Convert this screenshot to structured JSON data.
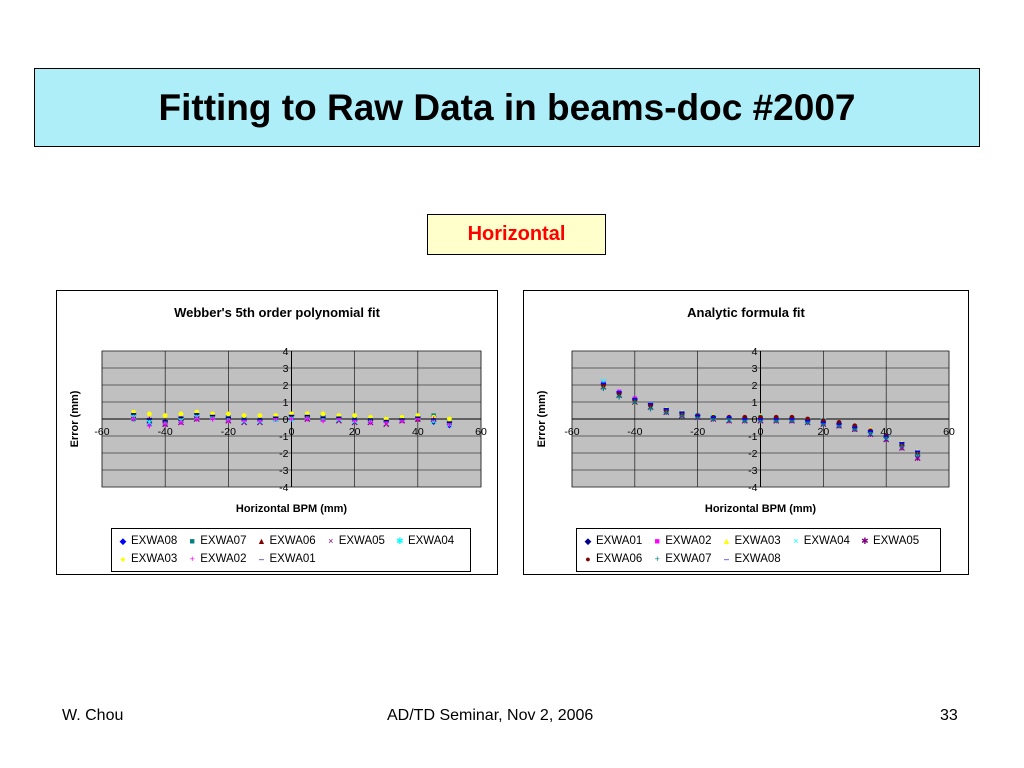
{
  "slide": {
    "title": "Fitting to Raw Data in beams-doc #2007",
    "subtitle": "Horizontal",
    "footer_left": "W. Chou",
    "footer_center": "AD/TD Seminar, Nov 2, 2006",
    "footer_right": "33",
    "title_bg": "#aeeef8",
    "subtitle_bg": "#ffffcc",
    "subtitle_color": "#ff0000"
  },
  "colors": {
    "EXWA01": "#00008b",
    "EXWA02": "#ff00ff",
    "EXWA03": "#ffff00",
    "EXWA04": "#00ffff",
    "EXWA05": "#800080",
    "EXWA06": "#800000",
    "EXWA07": "#008080",
    "EXWA08": "#0000ff"
  },
  "chart_data": [
    {
      "type": "scatter",
      "title": "Webber's 5th order polynomial fit",
      "xlabel": "Horizontal BPM (mm)",
      "ylabel": "Error (mm)",
      "xlim": [
        -60,
        60
      ],
      "ylim": [
        -4,
        4
      ],
      "xticks": [
        -60,
        -40,
        -20,
        0,
        20,
        40,
        60
      ],
      "yticks": [
        4,
        3,
        2,
        1,
        0,
        -1,
        -2,
        -3,
        -4
      ],
      "grid": true,
      "plot_bg": "#c0c0c0",
      "legend_position": "bottom",
      "legend_rows": [
        [
          "EXWA08",
          "EXWA07",
          "EXWA06",
          "EXWA05",
          "EXWA04"
        ],
        [
          "EXWA03",
          "EXWA02",
          "EXWA01"
        ]
      ],
      "x": [
        -50,
        -45,
        -40,
        -35,
        -30,
        -25,
        -20,
        -15,
        -10,
        -5,
        0,
        5,
        10,
        15,
        20,
        25,
        30,
        35,
        40,
        45,
        50
      ],
      "series": [
        {
          "name": "EXWA08",
          "marker": "diamond",
          "values": [
            0.4,
            -0.3,
            -0.2,
            0.0,
            0.2,
            0.3,
            0.2,
            0.1,
            0.0,
            0.1,
            0.2,
            0.2,
            0.2,
            0.1,
            0.0,
            -0.1,
            0.0,
            0.0,
            0.1,
            -0.2,
            -0.4
          ]
        },
        {
          "name": "EXWA07",
          "marker": "square",
          "values": [
            0.0,
            -0.2,
            -0.3,
            -0.1,
            0.1,
            0.2,
            0.1,
            0.0,
            -0.1,
            0.0,
            0.1,
            0.2,
            0.1,
            0.1,
            0.0,
            0.0,
            -0.1,
            0.0,
            0.1,
            0.2,
            -0.1
          ]
        },
        {
          "name": "EXWA06",
          "marker": "triangle",
          "values": [
            0.2,
            0.0,
            -0.1,
            0.1,
            0.2,
            0.1,
            0.0,
            0.0,
            0.0,
            0.1,
            0.2,
            0.1,
            0.0,
            0.0,
            0.0,
            -0.1,
            0.0,
            0.1,
            0.0,
            -0.1,
            -0.2
          ]
        },
        {
          "name": "EXWA05",
          "marker": "x",
          "values": [
            0.1,
            -0.1,
            -0.3,
            -0.2,
            0.0,
            0.1,
            -0.1,
            -0.2,
            -0.2,
            0.0,
            0.1,
            0.0,
            0.0,
            -0.1,
            -0.2,
            -0.2,
            -0.3,
            -0.1,
            0.0,
            0.0,
            -0.3
          ]
        },
        {
          "name": "EXWA04",
          "marker": "star",
          "values": [
            0.1,
            -0.2,
            -0.2,
            -0.1,
            0.1,
            0.1,
            0.0,
            -0.1,
            -0.1,
            0.0,
            0.0,
            0.1,
            0.0,
            0.0,
            -0.1,
            -0.1,
            -0.1,
            0.0,
            0.1,
            -0.1,
            -0.3
          ]
        },
        {
          "name": "EXWA03",
          "marker": "circle",
          "values": [
            0.4,
            0.3,
            0.2,
            0.3,
            0.4,
            0.3,
            0.3,
            0.2,
            0.2,
            0.2,
            0.3,
            0.3,
            0.3,
            0.2,
            0.2,
            0.1,
            0.0,
            0.1,
            0.2,
            0.1,
            0.0
          ]
        },
        {
          "name": "EXWA02",
          "marker": "plus",
          "values": [
            0.0,
            -0.4,
            -0.3,
            -0.2,
            0.0,
            0.0,
            -0.1,
            -0.1,
            -0.1,
            0.0,
            0.0,
            0.0,
            -0.1,
            0.0,
            -0.1,
            -0.2,
            -0.2,
            -0.1,
            0.0,
            0.0,
            -0.3
          ]
        },
        {
          "name": "EXWA01",
          "marker": "dash",
          "values": [
            0.3,
            0.0,
            -0.1,
            0.1,
            0.3,
            0.2,
            0.1,
            0.0,
            0.0,
            0.1,
            0.2,
            0.2,
            0.1,
            0.1,
            0.0,
            0.0,
            -0.1,
            0.0,
            0.1,
            0.0,
            -0.2
          ]
        }
      ]
    },
    {
      "type": "scatter",
      "title": "Analytic formula fit",
      "xlabel": "Horizontal BPM (mm)",
      "ylabel": "Error (mm)",
      "xlim": [
        -60,
        60
      ],
      "ylim": [
        -4,
        4
      ],
      "xticks": [
        -60,
        -40,
        -20,
        0,
        20,
        40,
        60
      ],
      "yticks": [
        4,
        3,
        2,
        1,
        0,
        -1,
        -2,
        -3,
        -4
      ],
      "grid": true,
      "plot_bg": "#c0c0c0",
      "legend_position": "bottom",
      "legend_rows": [
        [
          "EXWA01",
          "EXWA02",
          "EXWA03",
          "EXWA04",
          "EXWA05"
        ],
        [
          "EXWA06",
          "EXWA07",
          "EXWA08"
        ]
      ],
      "x": [
        -50,
        -45,
        -40,
        -35,
        -30,
        -25,
        -20,
        -15,
        -10,
        -5,
        0,
        5,
        10,
        15,
        20,
        25,
        30,
        35,
        40,
        45,
        50
      ],
      "series": [
        {
          "name": "EXWA01",
          "marker": "diamond",
          "values": [
            1.9,
            1.4,
            1.1,
            0.7,
            0.5,
            0.3,
            0.2,
            0.1,
            0.1,
            0.0,
            0.0,
            0.0,
            0.0,
            -0.1,
            -0.2,
            -0.3,
            -0.5,
            -0.7,
            -1.1,
            -1.5,
            -2.0
          ]
        },
        {
          "name": "EXWA02",
          "marker": "square",
          "values": [
            2.1,
            1.6,
            1.2,
            0.8,
            0.5,
            0.3,
            0.2,
            0.1,
            0.0,
            0.0,
            0.0,
            0.0,
            -0.1,
            -0.1,
            -0.2,
            -0.4,
            -0.6,
            -0.9,
            -1.2,
            -1.6,
            -2.2
          ]
        },
        {
          "name": "EXWA03",
          "marker": "triangle",
          "values": [
            2.0,
            1.5,
            1.0,
            0.8,
            0.6,
            0.4,
            0.2,
            0.2,
            0.1,
            0.1,
            0.2,
            0.1,
            0.1,
            0.0,
            -0.1,
            -0.2,
            -0.4,
            -0.6,
            -1.0,
            -1.4,
            -1.9
          ]
        },
        {
          "name": "EXWA04",
          "marker": "x",
          "values": [
            2.2,
            1.5,
            1.1,
            0.8,
            0.5,
            0.3,
            0.2,
            0.1,
            0.0,
            0.0,
            0.1,
            0.0,
            0.0,
            -0.1,
            -0.1,
            -0.3,
            -0.5,
            -0.8,
            -1.1,
            -1.5,
            -2.1
          ]
        },
        {
          "name": "EXWA05",
          "marker": "star",
          "values": [
            1.9,
            1.4,
            1.0,
            0.7,
            0.4,
            0.2,
            0.1,
            0.0,
            -0.1,
            -0.1,
            -0.1,
            -0.1,
            -0.1,
            -0.2,
            -0.3,
            -0.4,
            -0.6,
            -0.9,
            -1.2,
            -1.7,
            -2.3
          ]
        },
        {
          "name": "EXWA06",
          "marker": "circle",
          "values": [
            2.0,
            1.5,
            1.1,
            0.8,
            0.5,
            0.3,
            0.2,
            0.1,
            0.1,
            0.1,
            0.1,
            0.1,
            0.1,
            0.0,
            -0.1,
            -0.2,
            -0.4,
            -0.7,
            -1.0,
            -1.5,
            -2.0
          ]
        },
        {
          "name": "EXWA07",
          "marker": "plus",
          "values": [
            1.8,
            1.3,
            1.0,
            0.6,
            0.4,
            0.2,
            0.1,
            0.0,
            0.0,
            -0.1,
            -0.1,
            -0.1,
            -0.1,
            -0.2,
            -0.3,
            -0.4,
            -0.6,
            -0.8,
            -1.1,
            -1.6,
            -2.1
          ]
        },
        {
          "name": "EXWA08",
          "marker": "dash",
          "values": [
            2.1,
            1.6,
            1.2,
            0.9,
            0.6,
            0.4,
            0.2,
            0.1,
            0.1,
            0.0,
            0.0,
            0.0,
            0.0,
            -0.1,
            -0.2,
            -0.3,
            -0.5,
            -0.7,
            -1.0,
            -1.4,
            -1.9
          ]
        }
      ]
    }
  ]
}
